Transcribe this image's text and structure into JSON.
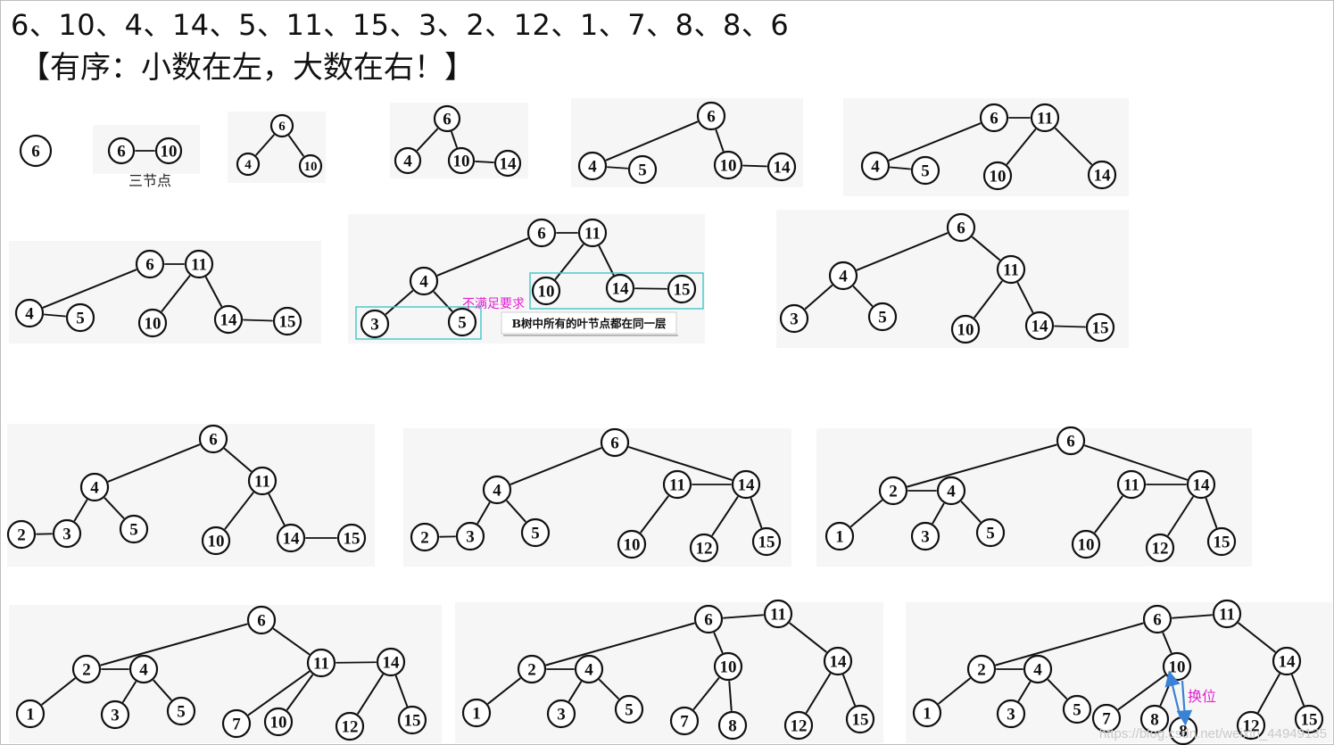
{
  "header": {
    "sequence": "6、10、4、14、5、11、15、3、2、12、1、7、8、8、6",
    "rule": "【有序：小数在左，大数在右！】"
  },
  "annotations": {
    "three_node": "三节点",
    "not_satisfied": "不满足要求",
    "leaf_rule": "B树中所有的叶节点都在同一层",
    "swap": "换位"
  },
  "watermark": "https://blog.csdn.net/weixin_44949135",
  "colors": {
    "ink": "#111111",
    "highlight_box": "#3fc7c7",
    "annotation_text": "#e020d0",
    "swap_arrow": "#3a82d6"
  },
  "steps": [
    {
      "id": "s1",
      "nodes": [
        "6"
      ]
    },
    {
      "id": "s2",
      "nodes": [
        "6",
        "10"
      ]
    },
    {
      "id": "s3",
      "nodes": [
        "6",
        "4",
        "10"
      ]
    },
    {
      "id": "s4",
      "nodes": [
        "6",
        "4",
        "10",
        "14"
      ]
    },
    {
      "id": "s5",
      "nodes": [
        "6",
        "4",
        "5",
        "10",
        "14"
      ]
    },
    {
      "id": "s6",
      "nodes": [
        "6",
        "11",
        "4",
        "5",
        "10",
        "14"
      ]
    },
    {
      "id": "s7",
      "nodes": [
        "6",
        "11",
        "4",
        "5",
        "10",
        "14",
        "15"
      ]
    },
    {
      "id": "s8",
      "nodes": [
        "6",
        "11",
        "4",
        "3",
        "5",
        "10",
        "14",
        "15"
      ]
    },
    {
      "id": "s9",
      "nodes": [
        "6",
        "4",
        "11",
        "3",
        "5",
        "10",
        "14",
        "15"
      ]
    },
    {
      "id": "s10",
      "nodes": [
        "6",
        "4",
        "11",
        "2",
        "3",
        "5",
        "10",
        "14",
        "15"
      ]
    },
    {
      "id": "s11",
      "nodes": [
        "6",
        "4",
        "11",
        "14",
        "2",
        "3",
        "5",
        "10",
        "12",
        "15"
      ]
    },
    {
      "id": "s12",
      "nodes": [
        "6",
        "2",
        "4",
        "11",
        "14",
        "1",
        "3",
        "5",
        "10",
        "12",
        "15"
      ]
    },
    {
      "id": "s13",
      "nodes": [
        "6",
        "2",
        "4",
        "11",
        "14",
        "1",
        "3",
        "5",
        "7",
        "10",
        "12",
        "15"
      ]
    },
    {
      "id": "s14",
      "nodes": [
        "6",
        "11",
        "2",
        "4",
        "10",
        "14",
        "1",
        "3",
        "5",
        "7",
        "8",
        "12",
        "15"
      ]
    },
    {
      "id": "s15",
      "nodes": [
        "6",
        "11",
        "2",
        "4",
        "10",
        "14",
        "1",
        "3",
        "5",
        "7",
        "8",
        "8",
        "12",
        "15"
      ]
    }
  ]
}
